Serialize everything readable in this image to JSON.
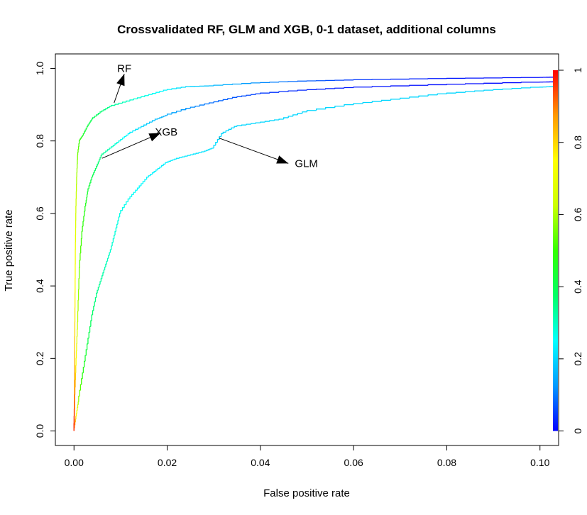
{
  "chart_data": {
    "type": "line",
    "title": "Crossvalidated RF, GLM and XGB, 0-1 dataset, additional columns",
    "xlabel": "False positive rate",
    "ylabel": "True positive rate",
    "xlim": [
      -0.004,
      0.104
    ],
    "ylim": [
      -0.04,
      1.04
    ],
    "xticks": [
      "0.00",
      "0.02",
      "0.04",
      "0.06",
      "0.08",
      "0.10"
    ],
    "xtick_values": [
      0,
      0.02,
      0.04,
      0.06,
      0.08,
      0.1
    ],
    "yticks": [
      "0.0",
      "0.2",
      "0.4",
      "0.6",
      "0.8",
      "1.0"
    ],
    "ytick_values": [
      0,
      0.2,
      0.4,
      0.6,
      0.8,
      1.0
    ],
    "grid": false,
    "colorbar": {
      "position": "right",
      "ticks": [
        "0",
        "0.2",
        "0.4",
        "0.6",
        "0.8",
        "1"
      ],
      "tick_values": [
        0,
        0.2,
        0.4,
        0.6,
        0.8,
        1.0
      ],
      "colors": [
        "#0000ff",
        "#0099ff",
        "#00ffff",
        "#00ff66",
        "#33ff00",
        "#ccff00",
        "#ffff00",
        "#ff9900",
        "#ff0000"
      ]
    },
    "series": [
      {
        "name": "RF",
        "x": [
          0,
          0.0001,
          0.0002,
          0.0003,
          0.0004,
          0.0006,
          0.0008,
          0.0012,
          0.002,
          0.003,
          0.004,
          0.006,
          0.008,
          0.012,
          0.016,
          0.02,
          0.025,
          0.03,
          0.04,
          0.05,
          0.06,
          0.08,
          0.1,
          0.1035
        ],
        "y": [
          0,
          0.1,
          0.3,
          0.5,
          0.6,
          0.7,
          0.76,
          0.8,
          0.815,
          0.84,
          0.86,
          0.88,
          0.895,
          0.91,
          0.925,
          0.94,
          0.95,
          0.952,
          0.96,
          0.965,
          0.968,
          0.972,
          0.975,
          0.976
        ],
        "score": [
          1.0,
          0.9,
          0.8,
          0.72,
          0.65,
          0.6,
          0.56,
          0.5,
          0.45,
          0.42,
          0.4,
          0.37,
          0.34,
          0.3,
          0.27,
          0.24,
          0.2,
          0.17,
          0.12,
          0.08,
          0.05,
          0.02,
          0.01,
          0.0
        ]
      },
      {
        "name": "XGB",
        "x": [
          0,
          0.0002,
          0.0005,
          0.0008,
          0.0012,
          0.0018,
          0.0025,
          0.003,
          0.004,
          0.005,
          0.006,
          0.008,
          0.01,
          0.012,
          0.015,
          0.018,
          0.02,
          0.025,
          0.03,
          0.035,
          0.04,
          0.05,
          0.06,
          0.08,
          0.1,
          0.1035
        ],
        "y": [
          0,
          0.1,
          0.2,
          0.3,
          0.45,
          0.55,
          0.62,
          0.66,
          0.7,
          0.73,
          0.76,
          0.78,
          0.8,
          0.82,
          0.84,
          0.86,
          0.87,
          0.89,
          0.905,
          0.92,
          0.93,
          0.94,
          0.947,
          0.955,
          0.962,
          0.963
        ],
        "score": [
          1.0,
          0.9,
          0.75,
          0.62,
          0.55,
          0.5,
          0.47,
          0.44,
          0.41,
          0.38,
          0.35,
          0.31,
          0.27,
          0.24,
          0.2,
          0.17,
          0.15,
          0.12,
          0.09,
          0.07,
          0.05,
          0.03,
          0.02,
          0.01,
          0.005,
          0.0
        ]
      },
      {
        "name": "GLM",
        "x": [
          0,
          0.0005,
          0.001,
          0.002,
          0.003,
          0.004,
          0.005,
          0.006,
          0.007,
          0.008,
          0.009,
          0.01,
          0.012,
          0.014,
          0.016,
          0.018,
          0.02,
          0.022,
          0.025,
          0.028,
          0.03,
          0.032,
          0.035,
          0.04,
          0.045,
          0.05,
          0.06,
          0.07,
          0.08,
          0.09,
          0.1,
          0.1035
        ],
        "y": [
          0,
          0.04,
          0.08,
          0.16,
          0.24,
          0.32,
          0.38,
          0.42,
          0.46,
          0.5,
          0.55,
          0.6,
          0.64,
          0.67,
          0.7,
          0.72,
          0.74,
          0.75,
          0.76,
          0.77,
          0.78,
          0.82,
          0.84,
          0.85,
          0.86,
          0.88,
          0.9,
          0.915,
          0.93,
          0.94,
          0.948,
          0.95
        ],
        "score": [
          1.0,
          0.8,
          0.6,
          0.48,
          0.42,
          0.38,
          0.35,
          0.33,
          0.31,
          0.29,
          0.28,
          0.27,
          0.26,
          0.25,
          0.24,
          0.235,
          0.23,
          0.225,
          0.22,
          0.215,
          0.21,
          0.2,
          0.2,
          0.2,
          0.2,
          0.2,
          0.2,
          0.2,
          0.2,
          0.2,
          0.2,
          0.2
        ]
      }
    ],
    "annotations": [
      {
        "text": "RF",
        "text_at": [
          0.0108,
          1.0
        ],
        "arrow_from": [
          0.0086,
          0.905
        ],
        "arrow_to": [
          0.0108,
          0.985
        ]
      },
      {
        "text": "XGB",
        "text_at": [
          0.0198,
          0.825
        ],
        "arrow_from": [
          0.006,
          0.752
        ],
        "arrow_to": [
          0.0186,
          0.822
        ]
      },
      {
        "text": "GLM",
        "text_at": [
          0.0474,
          0.738
        ],
        "arrow_from": [
          0.0311,
          0.808
        ],
        "arrow_to": [
          0.046,
          0.738
        ]
      }
    ]
  }
}
